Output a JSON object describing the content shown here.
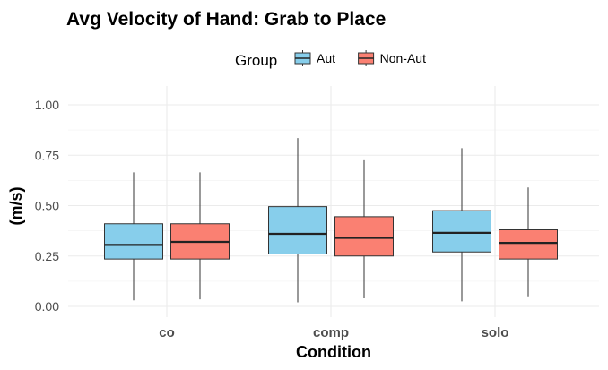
{
  "chart_data": {
    "type": "boxplot",
    "title": "Avg Velocity of Hand: Grab to Place",
    "xlabel": "Condition",
    "ylabel": "(m/s)",
    "ylim": [
      0,
      1
    ],
    "yticks": [
      "0.00",
      "0.25",
      "0.50",
      "0.75",
      "1.00"
    ],
    "grid": true,
    "legend": {
      "title": "Group",
      "position": "top"
    },
    "categories": [
      "co",
      "comp",
      "solo"
    ],
    "series": [
      {
        "name": "Aut",
        "color": "#87CEEB",
        "boxes": [
          {
            "min": 0.03,
            "q1": 0.235,
            "median": 0.305,
            "q3": 0.41,
            "max": 0.665
          },
          {
            "min": 0.02,
            "q1": 0.26,
            "median": 0.36,
            "q3": 0.495,
            "max": 0.835
          },
          {
            "min": 0.025,
            "q1": 0.27,
            "median": 0.365,
            "q3": 0.475,
            "max": 0.785
          }
        ]
      },
      {
        "name": "Non-Aut",
        "color": "#FA8072",
        "boxes": [
          {
            "min": 0.035,
            "q1": 0.235,
            "median": 0.32,
            "q3": 0.41,
            "max": 0.665
          },
          {
            "min": 0.04,
            "q1": 0.25,
            "median": 0.34,
            "q3": 0.445,
            "max": 0.725
          },
          {
            "min": 0.05,
            "q1": 0.235,
            "median": 0.315,
            "q3": 0.38,
            "max": 0.59
          }
        ]
      }
    ]
  }
}
